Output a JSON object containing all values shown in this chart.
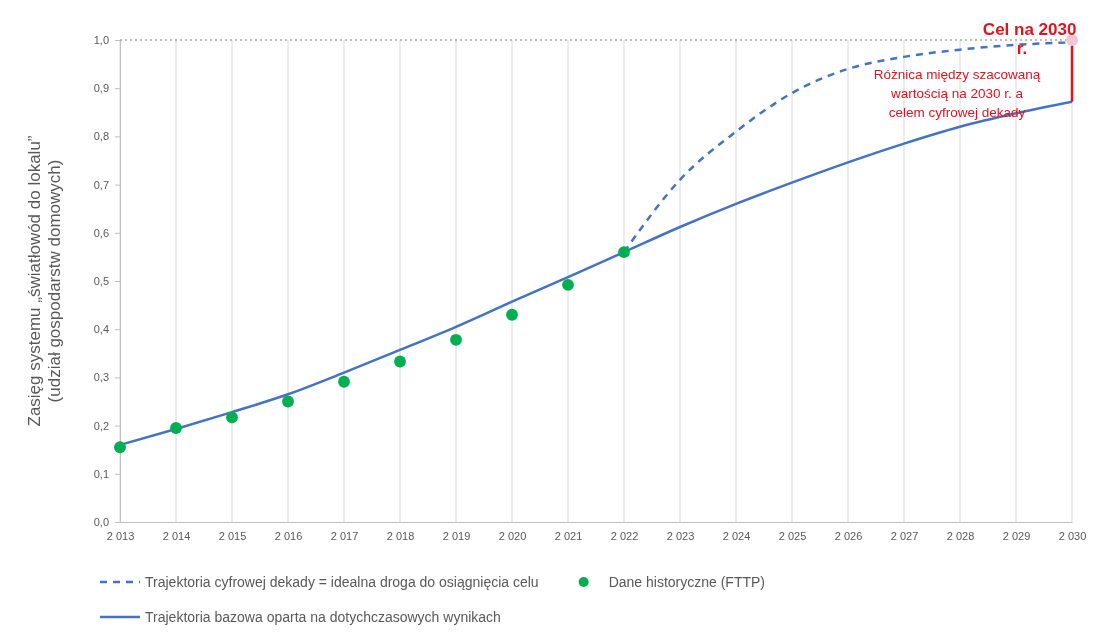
{
  "chart_data": {
    "type": "line",
    "ylabel": "Zasięg systemu „światłowód do lokalu”\n(udział gospodarstw domowych)",
    "xlim": [
      2013,
      2030
    ],
    "xticks": [
      {
        "value": 2013,
        "label": "2 013"
      },
      {
        "value": 2014,
        "label": "2 014"
      },
      {
        "value": 2015,
        "label": "2 015"
      },
      {
        "value": 2016,
        "label": "2 016"
      },
      {
        "value": 2017,
        "label": "2 017"
      },
      {
        "value": 2018,
        "label": "2 018"
      },
      {
        "value": 2019,
        "label": "2 019"
      },
      {
        "value": 2020,
        "label": "2 020"
      },
      {
        "value": 2021,
        "label": "2 021"
      },
      {
        "value": 2022,
        "label": "2 022"
      },
      {
        "value": 2023,
        "label": "2 023"
      },
      {
        "value": 2024,
        "label": "2 024"
      },
      {
        "value": 2025,
        "label": "2 025"
      },
      {
        "value": 2026,
        "label": "2 026"
      },
      {
        "value": 2027,
        "label": "2 027"
      },
      {
        "value": 2028,
        "label": "2 028"
      },
      {
        "value": 2029,
        "label": "2 029"
      },
      {
        "value": 2030,
        "label": "2 030"
      }
    ],
    "ylim": [
      0,
      1
    ],
    "yticks": [
      {
        "value": 0,
        "label": "0,0"
      },
      {
        "value": 0.1,
        "label": "0,1"
      },
      {
        "value": 0.2,
        "label": "0,2"
      },
      {
        "value": 0.3,
        "label": "0,3"
      },
      {
        "value": 0.4,
        "label": "0,4"
      },
      {
        "value": 0.5,
        "label": "0,5"
      },
      {
        "value": 0.6,
        "label": "0,6"
      },
      {
        "value": 0.7,
        "label": "0,7"
      },
      {
        "value": 0.8,
        "label": "0,8"
      },
      {
        "value": 0.9,
        "label": "0,9"
      },
      {
        "value": 1,
        "label": "1,0"
      }
    ],
    "grid": "x",
    "legend": "bottom",
    "series": [
      {
        "name": "Trajektoria cyfrowej dekady = idealna droga do osiągnięcia celu",
        "type": "line",
        "line_style": "dashed",
        "color": "#4472c4",
        "x": [
          2022,
          2023,
          2024,
          2025,
          2026,
          2027,
          2028,
          2029,
          2030
        ],
        "values": [
          0.56,
          0.71,
          0.81,
          0.89,
          0.94,
          0.965,
          0.98,
          0.99,
          0.995
        ]
      },
      {
        "name": "Dane historyczne (FTTP)",
        "type": "scatter",
        "marker": "circle",
        "color": "#00b050",
        "x": [
          2013,
          2014,
          2015,
          2016,
          2017,
          2018,
          2019,
          2020,
          2021,
          2022
        ],
        "values": [
          0.155,
          0.195,
          0.217,
          0.25,
          0.291,
          0.333,
          0.378,
          0.43,
          0.492,
          0.56
        ]
      },
      {
        "name": "Trajektoria bazowa oparta na dotychczasowych wynikach",
        "type": "line",
        "line_style": "solid",
        "color": "#4472c4",
        "x": [
          2013,
          2014,
          2015,
          2016,
          2017,
          2018,
          2019,
          2020,
          2021,
          2022,
          2023,
          2024,
          2025,
          2026,
          2027,
          2028,
          2029,
          2030
        ],
        "values": [
          0.16,
          0.193,
          0.228,
          0.265,
          0.31,
          0.357,
          0.405,
          0.457,
          0.508,
          0.56,
          0.612,
          0.66,
          0.704,
          0.746,
          0.785,
          0.82,
          0.848,
          0.872
        ]
      },
      {
        "type": "scatter",
        "marker": "circle",
        "color": "#f4c7d0",
        "x": [
          2030
        ],
        "values": [
          1
        ],
        "errors": [
          [
            0.872,
            1
          ]
        ]
      }
    ],
    "ref_lines": [
      {
        "axis": "y",
        "value": 1,
        "color": "#a6a6a6",
        "line_style": "dotted"
      }
    ],
    "annotations": [
      {
        "text": "Cel na 2030 r.",
        "x": 2030,
        "y": 1
      },
      {
        "text": "Różnica między szacowaną wartością na 2030 r. a celem cyfrowej dekady",
        "x": 2030,
        "y": 0.935
      }
    ]
  }
}
